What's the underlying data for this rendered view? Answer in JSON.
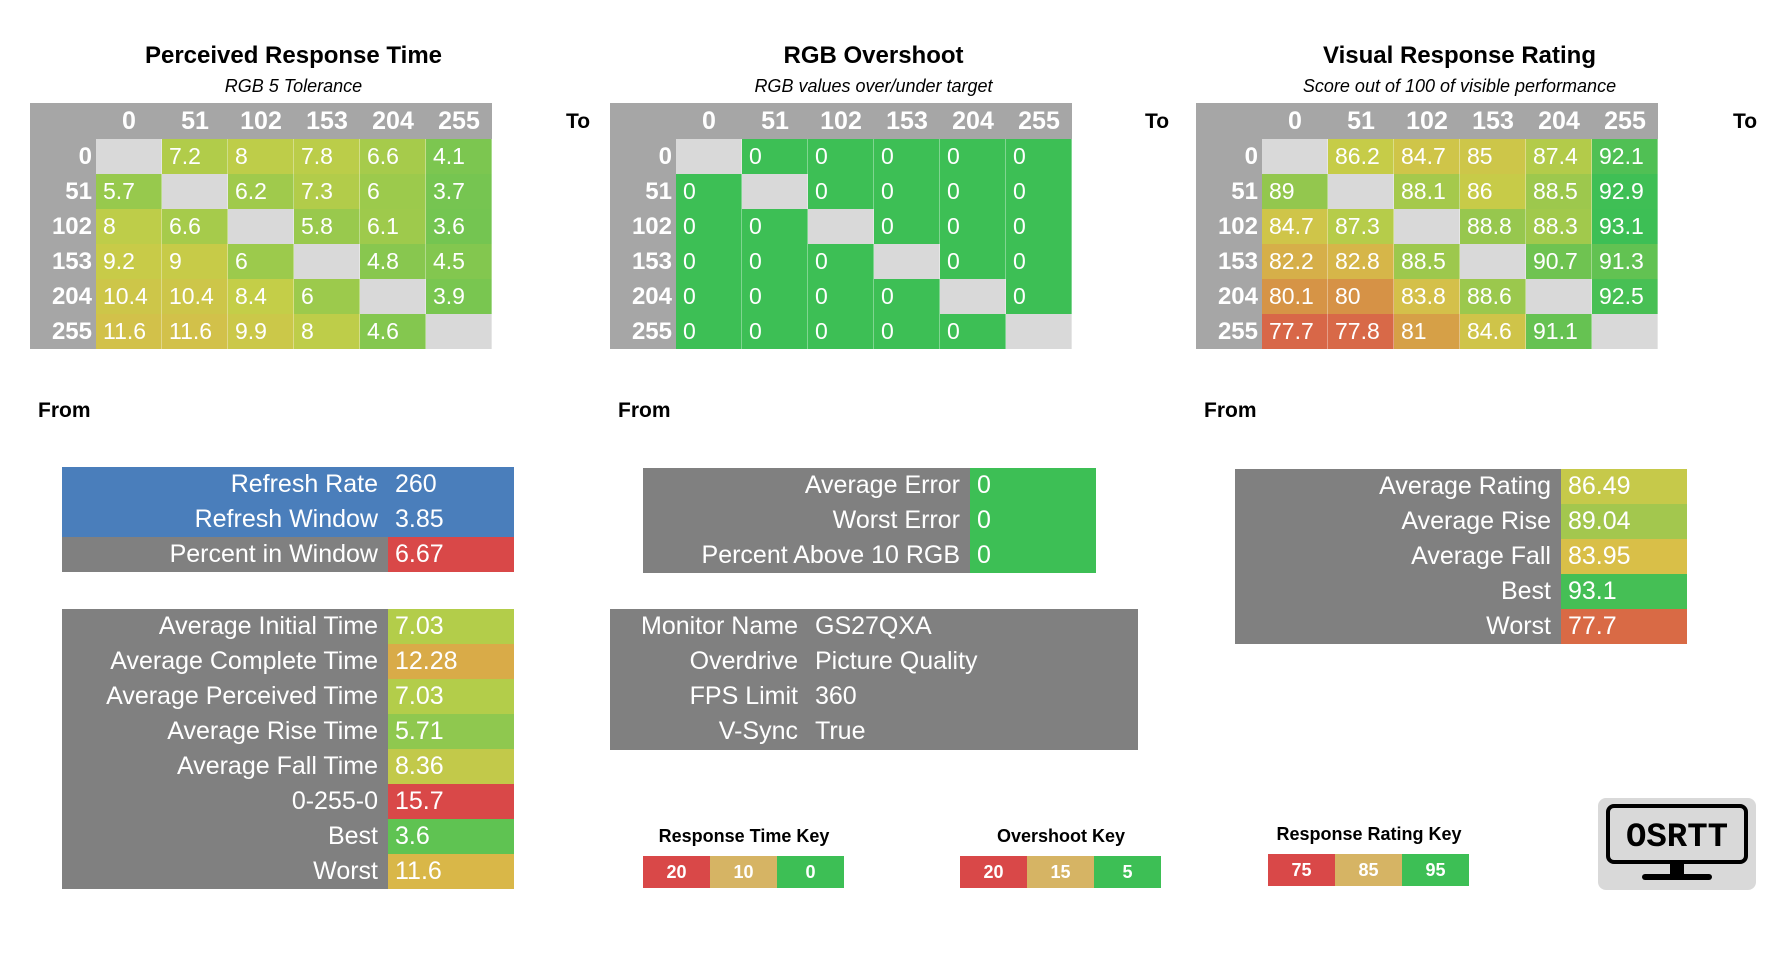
{
  "colors": {
    "header_gray": "#a6a6a6",
    "diagonal_gray": "#d9d9d9",
    "panel_gray": "#808080",
    "blue": "#4a7ebb",
    "red": "#d94848",
    "amber": "#d6b24a",
    "green": "#3dbf55"
  },
  "chart_data": [
    {
      "type": "heatmap",
      "title": "Perceived Response Time",
      "subtitle": "RGB 5 Tolerance",
      "xlabel": "To",
      "ylabel": "From",
      "columns": [
        "0",
        "51",
        "102",
        "153",
        "204",
        "255"
      ],
      "rows": [
        "0",
        "51",
        "102",
        "153",
        "204",
        "255"
      ],
      "values": [
        [
          null,
          7.2,
          8,
          7.8,
          6.6,
          4.1
        ],
        [
          5.7,
          null,
          6.2,
          7.3,
          6,
          3.7
        ],
        [
          8,
          6.6,
          null,
          5.8,
          6.1,
          3.6
        ],
        [
          9.2,
          9,
          6,
          null,
          4.8,
          4.5
        ],
        [
          10.4,
          10.4,
          8.4,
          6,
          null,
          3.9
        ],
        [
          11.6,
          11.6,
          9.9,
          8,
          4.6,
          null
        ]
      ],
      "color_scale": "time"
    },
    {
      "type": "heatmap",
      "title": "RGB Overshoot",
      "subtitle": "RGB values over/under target",
      "xlabel": "To",
      "ylabel": "From",
      "columns": [
        "0",
        "51",
        "102",
        "153",
        "204",
        "255"
      ],
      "rows": [
        "0",
        "51",
        "102",
        "153",
        "204",
        "255"
      ],
      "values": [
        [
          null,
          0,
          0,
          0,
          0,
          0
        ],
        [
          0,
          null,
          0,
          0,
          0,
          0
        ],
        [
          0,
          0,
          null,
          0,
          0,
          0
        ],
        [
          0,
          0,
          0,
          null,
          0,
          0
        ],
        [
          0,
          0,
          0,
          0,
          null,
          0
        ],
        [
          0,
          0,
          0,
          0,
          0,
          null
        ]
      ],
      "color_scale": "overshoot"
    },
    {
      "type": "heatmap",
      "title": "Visual Response Rating",
      "subtitle": "Score out of 100 of visible performance",
      "xlabel": "To",
      "ylabel": "From",
      "columns": [
        "0",
        "51",
        "102",
        "153",
        "204",
        "255"
      ],
      "rows": [
        "0",
        "51",
        "102",
        "153",
        "204",
        "255"
      ],
      "values": [
        [
          null,
          86.2,
          84.7,
          85,
          87.4,
          92.1
        ],
        [
          89,
          null,
          88.1,
          86,
          88.5,
          92.9
        ],
        [
          84.7,
          87.3,
          null,
          88.8,
          88.3,
          93.1
        ],
        [
          82.2,
          82.8,
          88.5,
          null,
          90.7,
          91.3
        ],
        [
          80.1,
          80,
          83.8,
          88.6,
          null,
          92.5
        ],
        [
          77.7,
          77.8,
          81,
          84.6,
          91.1,
          null
        ]
      ],
      "color_scale": "rating"
    }
  ],
  "refresh_table": [
    {
      "label": "Refresh Rate",
      "value": "260",
      "bg": "blue",
      "val_bg": "blue"
    },
    {
      "label": "Refresh Window",
      "value": "3.85",
      "bg": "blue",
      "val_bg": "blue"
    },
    {
      "label": "Percent in Window",
      "value": "6.67",
      "bg": "gray",
      "val_bg": "red"
    }
  ],
  "time_table": [
    {
      "label": "Average Initial Time",
      "value": "7.03",
      "val_color": "#b3cd4a"
    },
    {
      "label": "Average Complete Time",
      "value": "12.28",
      "val_color": "#d9ab48"
    },
    {
      "label": "Average Perceived Time",
      "value": "7.03",
      "val_color": "#b3cd4a"
    },
    {
      "label": "Average Rise Time",
      "value": "5.71",
      "val_color": "#8fc84f"
    },
    {
      "label": "Average Fall Time",
      "value": "8.36",
      "val_color": "#c2c94a"
    },
    {
      "label": "0-255-0",
      "value": "15.7",
      "val_color": "#d94848"
    },
    {
      "label": "Best",
      "value": "3.6",
      "val_color": "#5fc352"
    },
    {
      "label": "Worst",
      "value": "11.6",
      "val_color": "#d9b748"
    }
  ],
  "error_table": [
    {
      "label": "Average Error",
      "value": "0"
    },
    {
      "label": "Worst Error",
      "value": "0"
    },
    {
      "label": "Percent Above 10 RGB",
      "value": "0"
    }
  ],
  "monitor_table": [
    {
      "label": "Monitor Name",
      "value": "GS27QXA"
    },
    {
      "label": "Overdrive",
      "value": "Picture Quality"
    },
    {
      "label": "FPS Limit",
      "value": "360"
    },
    {
      "label": "V-Sync",
      "value": "True"
    }
  ],
  "rating_table": [
    {
      "label": "Average Rating",
      "value": "86.49",
      "val_color": "#c6c94a"
    },
    {
      "label": "Average Rise",
      "value": "89.04",
      "val_color": "#a3c74e"
    },
    {
      "label": "Average Fall",
      "value": "83.95",
      "val_color": "#d9bf48"
    },
    {
      "label": "Best",
      "value": "93.1",
      "val_color": "#45bf55"
    },
    {
      "label": "Worst",
      "value": "77.7",
      "val_color": "#d96a45"
    }
  ],
  "keys": [
    {
      "title": "Response Time Key",
      "cells": [
        {
          "label": "20",
          "color": "#d94848"
        },
        {
          "label": "10",
          "color": "#d6b464"
        },
        {
          "label": "0",
          "color": "#3dbf55"
        }
      ]
    },
    {
      "title": "Overshoot Key",
      "cells": [
        {
          "label": "20",
          "color": "#d94848"
        },
        {
          "label": "15",
          "color": "#d6b464"
        },
        {
          "label": "5",
          "color": "#3dbf55"
        }
      ]
    },
    {
      "title": "Response Rating Key",
      "cells": [
        {
          "label": "75",
          "color": "#d94848"
        },
        {
          "label": "85",
          "color": "#d6b464"
        },
        {
          "label": "95",
          "color": "#3dbf55"
        }
      ]
    }
  ],
  "logo": {
    "text": "OSRTT"
  }
}
